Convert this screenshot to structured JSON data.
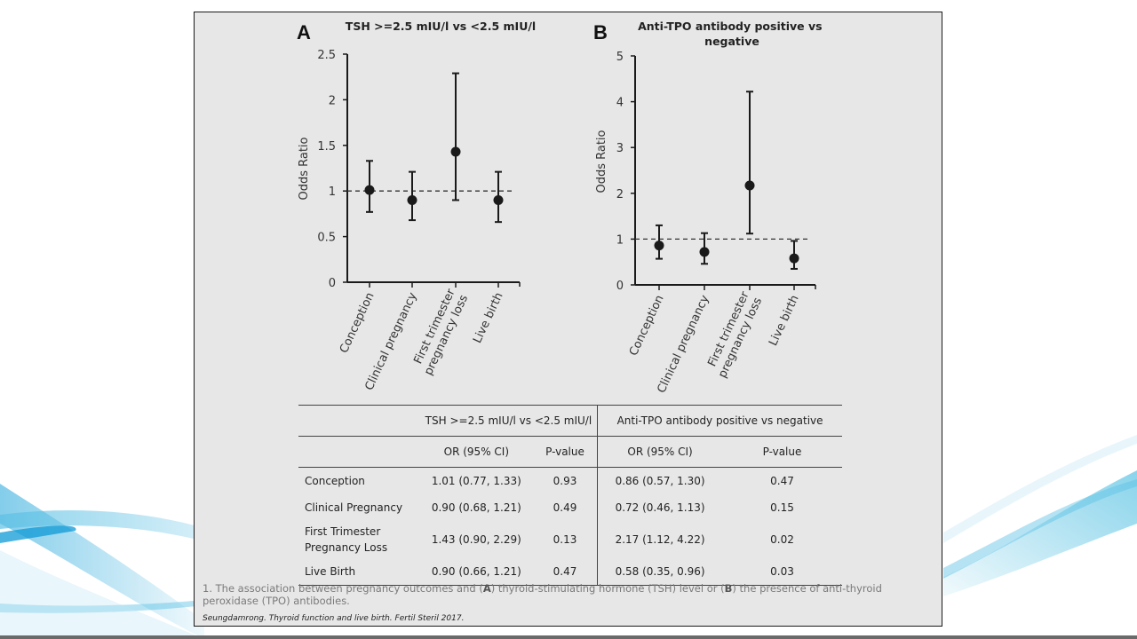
{
  "chart_data": [
    {
      "type": "scatter",
      "panel_letter": "A",
      "title": "TSH >=2.5 mIU/l vs <2.5 mIU/l",
      "xlabel": "",
      "ylabel": "Odds Ratio",
      "ylim": [
        0,
        2.5
      ],
      "yticks": [
        0,
        0.5,
        1,
        1.5,
        2,
        2.5
      ],
      "ytick_labels": [
        "0",
        "0.5",
        "1",
        "1.5",
        "2",
        "2.5"
      ],
      "reference_line": 1,
      "grid": false,
      "categories": [
        "Conception",
        "Clinical pregnancy",
        "First trimester\npregnancy loss",
        "Live birth"
      ],
      "values": [
        1.01,
        0.9,
        1.43,
        0.9
      ],
      "ci_lower": [
        0.77,
        0.68,
        0.9,
        0.66
      ],
      "ci_upper": [
        1.33,
        1.21,
        2.29,
        1.21
      ]
    },
    {
      "type": "scatter",
      "panel_letter": "B",
      "title": "Anti-TPO antibody positive vs\nnegative",
      "xlabel": "",
      "ylabel": "Odds Ratio",
      "ylim": [
        0,
        5
      ],
      "yticks": [
        0,
        1,
        2,
        3,
        4,
        5
      ],
      "ytick_labels": [
        "0",
        "1",
        "2",
        "3",
        "4",
        "5"
      ],
      "reference_line": 1,
      "grid": false,
      "categories": [
        "Conception",
        "Clinical pregnancy",
        "First trimester\npregnancy loss",
        "Live birth"
      ],
      "values": [
        0.86,
        0.72,
        2.17,
        0.58
      ],
      "ci_lower": [
        0.57,
        0.46,
        1.12,
        0.35
      ],
      "ci_upper": [
        1.3,
        1.13,
        4.22,
        0.96
      ]
    }
  ],
  "table": {
    "group_headers": [
      "TSH >=2.5 mIU/l vs <2.5 mIU/l",
      "Anti-TPO antibody positive vs negative"
    ],
    "sub_headers": [
      "OR (95% CI)",
      "P-value",
      "OR (95% CI)",
      "P-value"
    ],
    "rows": [
      {
        "label": "Conception",
        "tsh_or": "1.01 (0.77, 1.33)",
        "tsh_p": "0.93",
        "tpo_or": "0.86 (0.57, 1.30)",
        "tpo_p": "0.47"
      },
      {
        "label": "Clinical Pregnancy",
        "tsh_or": "0.90 (0.68, 1.21)",
        "tsh_p": "0.49",
        "tpo_or": "0.72 (0.46, 1.13)",
        "tpo_p": "0.15"
      },
      {
        "label_line1": "First Trimester",
        "label_line2": "Pregnancy Loss",
        "tsh_or": "1.43 (0.90, 2.29)",
        "tsh_p": "0.13",
        "tpo_or": "2.17 (1.12, 4.22)",
        "tpo_p": "0.02"
      },
      {
        "label": "Live Birth",
        "tsh_or": "0.90 (0.66, 1.21)",
        "tsh_p": "0.47",
        "tpo_or": "0.58 (0.35, 0.96)",
        "tpo_p": "0.03"
      }
    ]
  },
  "caption": {
    "part1": "1. The association between pregnancy outcomes and (",
    "bold_a": "A",
    "part2": ") thyroid-stimulating hormone (TSH) level or (",
    "bold_b": "B",
    "part3": ") the presence of anti-thyroid peroxidase (TPO) antibodies."
  },
  "citation": "Seungdamrong. Thyroid function and live birth. Fertil Steril 2017.",
  "colors": {
    "panel_bg": "#e7e7e8",
    "marker": "#1a1a1a",
    "wave_blue": "#1aa3d9",
    "wave_light": "#8fd3ea"
  }
}
